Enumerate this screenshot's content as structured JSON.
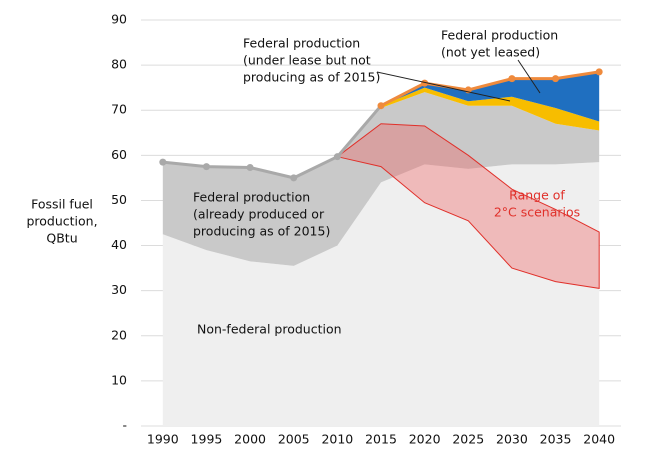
{
  "chart_data": {
    "type": "stacked_area",
    "y_label": [
      "Fossil fuel",
      "production,",
      "QBtu"
    ],
    "x": [
      1990,
      1995,
      2000,
      2005,
      2010,
      2015,
      2020,
      2025,
      2030,
      2035,
      2040
    ],
    "xlim": [
      1987.5,
      2042.5
    ],
    "xticks": [
      1990,
      1995,
      2000,
      2005,
      2010,
      2015,
      2020,
      2025,
      2030,
      2035,
      2040
    ],
    "ylim": [
      0,
      90
    ],
    "yticks": [
      {
        "value": 0,
        "label": "-"
      },
      10,
      20,
      30,
      40,
      50,
      60,
      70,
      80,
      90
    ],
    "grid": true,
    "series": [
      {
        "label": [
          "Non-federal production"
        ],
        "color": "#efefef",
        "values": [
          42.5,
          39,
          36.5,
          35.5,
          40,
          54,
          58,
          57,
          58,
          58,
          58.5
        ]
      },
      {
        "label": [
          "Federal production",
          "(already produced or",
          "producing as of 2015)"
        ],
        "color": "#c9c9c9",
        "values": [
          16,
          18.5,
          20.8,
          19.5,
          19.7,
          16.5,
          16,
          14,
          13,
          9,
          7
        ]
      },
      {
        "label": [
          "Federal production",
          "(under lease but not",
          "producing as of 2015)"
        ],
        "color": "#f7bd00",
        "values": [
          null,
          null,
          null,
          null,
          null,
          0.5,
          1,
          1,
          2,
          3.5,
          2
        ]
      },
      {
        "label": [
          "Federal production",
          "(not yet leased)"
        ],
        "color": "#1f6fc0",
        "values": [
          null,
          null,
          null,
          null,
          null,
          0,
          1,
          2.5,
          4,
          6.5,
          11
        ]
      }
    ],
    "historical_color": "#a9a9a9",
    "projection_color": "#ef8a3c",
    "range": {
      "label": [
        "Range of",
        "2°C scenarios"
      ],
      "color": "#e0302a",
      "low": [
        null,
        null,
        null,
        null,
        59.7,
        57.5,
        49.5,
        45.5,
        35,
        32,
        30.5
      ],
      "high": [
        null,
        null,
        null,
        null,
        59.7,
        67,
        66.5,
        60,
        52.5,
        48,
        43
      ]
    }
  }
}
